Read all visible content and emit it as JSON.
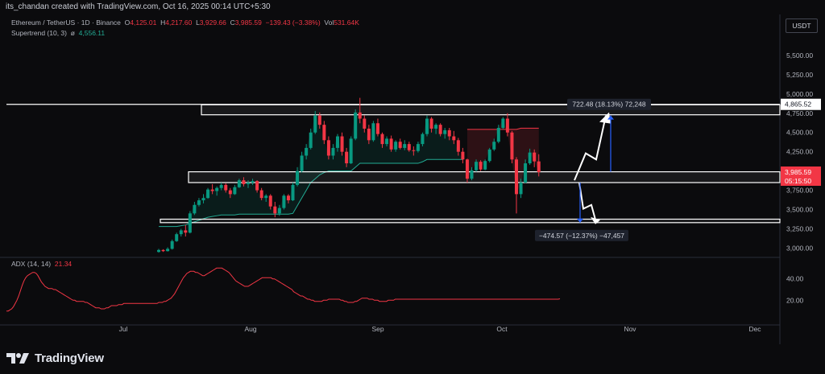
{
  "header": {
    "credit": "its_chandan created with TradingView.com, Oct 16, 2025 00:14 UTC+5:30",
    "symbol": "Ethereum / TetherUS · 1D · Binance",
    "ohlc": {
      "o_label": "O",
      "o": "4,125.01",
      "h_label": "H",
      "h": "4,217.60",
      "l_label": "L",
      "l": "3,929.66",
      "c_label": "C",
      "c": "3,985.59",
      "change": "−139.43 (−3.38%)",
      "vol_label": "Vol",
      "vol": "531.64K"
    },
    "indicator": "Supertrend (10, 3)",
    "indicator_symbol": "ø",
    "indicator_value": "4,556.11",
    "currency": "USDT"
  },
  "adx": {
    "label": "ADX (14, 14)",
    "value": "21.34"
  },
  "brand": {
    "name": "TradingView"
  },
  "colors": {
    "background": "#0b0b0d",
    "up": "#089981",
    "down": "#f23645",
    "adx": "#f23645",
    "measure": "#2962ff",
    "price_tag": "#f23645"
  },
  "chart_data": [
    {
      "type": "candlestick",
      "title": "Ethereum / TetherUS · 1D · Binance",
      "x_labels": [
        "Jul",
        "Aug",
        "Sep",
        "Oct",
        "Nov",
        "Dec"
      ],
      "y_ticks": [
        "5,500.00",
        "5,250.00",
        "5,000.00",
        "4,750.00",
        "4,500.00",
        "4,250.00",
        "3,750.00",
        "3,500.00",
        "3,250.00",
        "3,000.00"
      ],
      "ylim": [
        2900,
        5750
      ],
      "last_price": "3,985.59",
      "last_price_value": 3985.59,
      "countdown": "05:15:50",
      "resistance_value": 4865.52,
      "resistance_label": "4,865.52",
      "supertrend_last": 4556.11,
      "zones": [
        {
          "from": 4730,
          "to": 4860
        },
        {
          "from": 3850,
          "to": 3990
        },
        {
          "from": 3330,
          "to": 3375
        }
      ],
      "measure_up": {
        "from": 3990,
        "to": 4720,
        "label": "722.48 (18.13%) 72,248"
      },
      "measure_down": {
        "from": 3850,
        "to": 3330,
        "label": "−474.57 (−12.37%) −47,457"
      },
      "projection_up": [
        3880,
        4230,
        4150,
        4720
      ],
      "projection_down": [
        3850,
        3510,
        3560,
        3330
      ],
      "candles": [
        [
          2950,
          2990,
          2940,
          2975
        ],
        [
          2975,
          2985,
          2950,
          2960
        ],
        [
          2960,
          3010,
          2955,
          2990
        ],
        [
          2990,
          3110,
          2980,
          3090
        ],
        [
          3090,
          3200,
          3080,
          3180
        ],
        [
          3180,
          3250,
          3150,
          3230
        ],
        [
          3230,
          3300,
          3150,
          3200
        ],
        [
          3200,
          3480,
          3190,
          3450
        ],
        [
          3450,
          3600,
          3430,
          3560
        ],
        [
          3560,
          3650,
          3540,
          3620
        ],
        [
          3620,
          3700,
          3580,
          3650
        ],
        [
          3650,
          3780,
          3640,
          3760
        ],
        [
          3760,
          3830,
          3700,
          3740
        ],
        [
          3740,
          3800,
          3680,
          3780
        ],
        [
          3780,
          3850,
          3750,
          3820
        ],
        [
          3820,
          3840,
          3720,
          3750
        ],
        [
          3750,
          3780,
          3650,
          3700
        ],
        [
          3700,
          3820,
          3690,
          3790
        ],
        [
          3790,
          3900,
          3780,
          3880
        ],
        [
          3880,
          3920,
          3800,
          3830
        ],
        [
          3830,
          3880,
          3780,
          3850
        ],
        [
          3850,
          3900,
          3820,
          3870
        ],
        [
          3870,
          3880,
          3720,
          3750
        ],
        [
          3750,
          3780,
          3620,
          3650
        ],
        [
          3650,
          3700,
          3600,
          3680
        ],
        [
          3680,
          3700,
          3500,
          3540
        ],
        [
          3540,
          3600,
          3400,
          3450
        ],
        [
          3450,
          3560,
          3420,
          3520
        ],
        [
          3520,
          3700,
          3500,
          3680
        ],
        [
          3680,
          3700,
          3580,
          3620
        ],
        [
          3620,
          3850,
          3610,
          3820
        ],
        [
          3820,
          4050,
          3800,
          4000
        ],
        [
          4000,
          4250,
          3980,
          4200
        ],
        [
          4200,
          4350,
          4150,
          4300
        ],
        [
          4300,
          4550,
          4280,
          4500
        ],
        [
          4500,
          4780,
          4480,
          4720
        ],
        [
          4720,
          4760,
          4550,
          4600
        ],
        [
          4600,
          4650,
          4350,
          4400
        ],
        [
          4400,
          4450,
          4150,
          4200
        ],
        [
          4200,
          4350,
          4150,
          4300
        ],
        [
          4300,
          4480,
          4250,
          4450
        ],
        [
          4450,
          4500,
          4200,
          4250
        ],
        [
          4250,
          4300,
          4050,
          4100
        ],
        [
          4100,
          4450,
          4090,
          4420
        ],
        [
          4420,
          4800,
          4400,
          4760
        ],
        [
          4760,
          4950,
          4620,
          4680
        ],
        [
          4680,
          4720,
          4500,
          4550
        ],
        [
          4550,
          4600,
          4350,
          4400
        ],
        [
          4400,
          4650,
          4380,
          4620
        ],
        [
          4620,
          4680,
          4450,
          4480
        ],
        [
          4480,
          4500,
          4300,
          4350
        ],
        [
          4350,
          4450,
          4320,
          4420
        ],
        [
          4420,
          4460,
          4250,
          4280
        ],
        [
          4280,
          4400,
          4250,
          4380
        ],
        [
          4380,
          4420,
          4280,
          4300
        ],
        [
          4300,
          4400,
          4270,
          4350
        ],
        [
          4350,
          4380,
          4250,
          4270
        ],
        [
          4270,
          4320,
          4200,
          4260
        ],
        [
          4260,
          4380,
          4240,
          4350
        ],
        [
          4350,
          4500,
          4320,
          4480
        ],
        [
          4480,
          4720,
          4450,
          4680
        ],
        [
          4680,
          4700,
          4500,
          4550
        ],
        [
          4550,
          4620,
          4480,
          4600
        ],
        [
          4600,
          4620,
          4450,
          4480
        ],
        [
          4480,
          4560,
          4420,
          4530
        ],
        [
          4530,
          4560,
          4400,
          4450
        ],
        [
          4450,
          4520,
          4350,
          4400
        ],
        [
          4400,
          4430,
          4200,
          4250
        ],
        [
          4250,
          4300,
          4100,
          4150
        ],
        [
          4150,
          4160,
          3850,
          3900
        ],
        [
          3900,
          4050,
          3880,
          4010
        ],
        [
          4010,
          4150,
          3990,
          4120
        ],
        [
          4120,
          4140,
          4000,
          4020
        ],
        [
          4020,
          4150,
          4010,
          4130
        ],
        [
          4130,
          4300,
          4110,
          4280
        ],
        [
          4280,
          4420,
          4260,
          4380
        ],
        [
          4380,
          4600,
          4360,
          4560
        ],
        [
          4560,
          4700,
          4540,
          4680
        ],
        [
          4680,
          4750,
          4450,
          4500
        ],
        [
          4500,
          4520,
          4100,
          4150
        ],
        [
          4150,
          4180,
          3450,
          3700
        ],
        [
          3700,
          3900,
          3650,
          3850
        ],
        [
          3850,
          4150,
          3840,
          4100
        ],
        [
          4100,
          4290,
          4080,
          4240
        ],
        [
          4240,
          4280,
          4050,
          4125
        ],
        [
          4125,
          4217.6,
          3929.66,
          3985.59
        ]
      ],
      "supertrend_up": [
        3280,
        3280,
        3280,
        3280,
        3280,
        3290,
        3300,
        3320,
        3340,
        3360,
        3380,
        3400,
        3410,
        3420,
        3430,
        3430,
        3430,
        3430,
        3440,
        3440,
        3440,
        3440,
        3440,
        3440,
        3440,
        3440,
        3440,
        3440,
        3440,
        3440,
        3450,
        3550,
        3650,
        3750,
        3850,
        3900,
        3950,
        3980,
        4000,
        4000,
        4000,
        4000,
        4000,
        4000,
        4050,
        4100,
        4100,
        4100,
        4100,
        4100,
        4100,
        4100,
        4100,
        4100,
        4100,
        4100,
        4100,
        4100,
        4100,
        4120,
        4150,
        4150,
        4150,
        4150,
        4150,
        4150,
        4150,
        4150,
        4150
      ],
      "supertrend_down_start": 69,
      "supertrend_down": [
        4540,
        4540,
        4540,
        4540,
        4540,
        4540,
        4540,
        4540,
        4540,
        4540,
        4540,
        4540,
        4556,
        4556,
        4556,
        4556,
        4556
      ],
      "adx_ticks": [
        "40.00",
        "20.00"
      ],
      "adx_range": [
        0,
        60
      ],
      "adx_values": [
        10,
        10,
        11,
        12,
        14,
        17,
        20,
        24,
        29,
        34,
        38,
        41,
        43,
        44,
        45,
        46,
        46,
        45,
        43,
        40,
        37,
        35,
        33,
        32,
        31,
        31,
        31,
        30,
        30,
        29,
        28,
        27,
        26,
        25,
        24,
        23,
        22,
        21,
        20,
        20,
        19,
        19,
        19,
        19,
        19,
        18,
        18,
        17,
        16,
        15,
        14,
        13,
        13,
        13,
        12,
        12,
        12,
        13,
        13,
        14,
        15,
        15,
        15,
        15,
        16,
        16,
        16,
        17,
        17,
        17,
        17,
        17,
        17,
        17,
        17,
        17,
        17,
        17,
        17,
        17,
        17,
        17,
        17,
        17,
        17,
        17,
        17,
        18,
        18,
        18,
        19,
        19,
        20,
        21,
        22,
        24,
        26,
        29,
        32,
        35,
        38,
        41,
        43,
        45,
        46,
        47,
        47,
        47,
        46,
        46,
        45,
        44,
        43,
        43,
        44,
        45,
        46,
        47,
        48,
        49,
        50,
        50,
        50,
        50,
        49,
        48,
        47,
        46,
        44,
        42,
        40,
        38,
        37,
        36,
        35,
        34,
        33,
        33,
        33,
        34,
        35,
        36,
        37,
        38,
        39,
        40,
        41,
        41,
        41,
        41,
        41,
        41,
        40,
        40,
        39,
        38,
        37,
        36,
        35,
        34,
        33,
        32,
        31,
        30,
        28,
        27,
        26,
        25,
        24,
        24,
        23,
        22,
        21,
        21,
        20,
        20,
        19,
        19,
        19,
        19,
        19,
        20,
        20,
        20,
        21,
        21,
        21,
        21,
        21,
        21,
        21,
        20,
        20,
        19,
        19,
        18,
        18,
        18,
        18,
        19,
        19,
        20,
        21,
        22,
        22,
        22,
        22,
        21,
        21,
        21,
        20,
        20,
        20,
        19,
        19,
        19,
        19,
        19,
        20,
        20,
        20,
        20,
        21,
        21,
        21,
        21,
        21,
        21,
        21,
        21,
        21,
        21,
        21,
        21,
        21,
        21,
        21,
        21,
        21,
        21,
        21,
        21,
        21,
        21,
        21,
        21,
        21,
        21,
        21,
        21,
        21,
        21,
        21,
        21,
        21,
        21,
        21,
        21,
        21,
        21,
        21,
        21,
        21,
        21,
        21,
        21,
        21,
        21,
        21,
        21,
        21,
        21,
        21,
        21,
        21,
        21,
        21,
        21,
        21,
        21,
        21,
        21,
        21,
        21,
        21,
        21,
        21,
        21,
        21,
        21,
        21,
        21,
        21,
        21,
        21,
        21,
        21,
        21,
        21,
        21,
        21,
        21,
        21,
        21,
        21,
        21,
        21,
        21,
        21,
        21,
        21,
        21,
        21,
        21,
        21,
        21,
        21.34
      ]
    }
  ]
}
